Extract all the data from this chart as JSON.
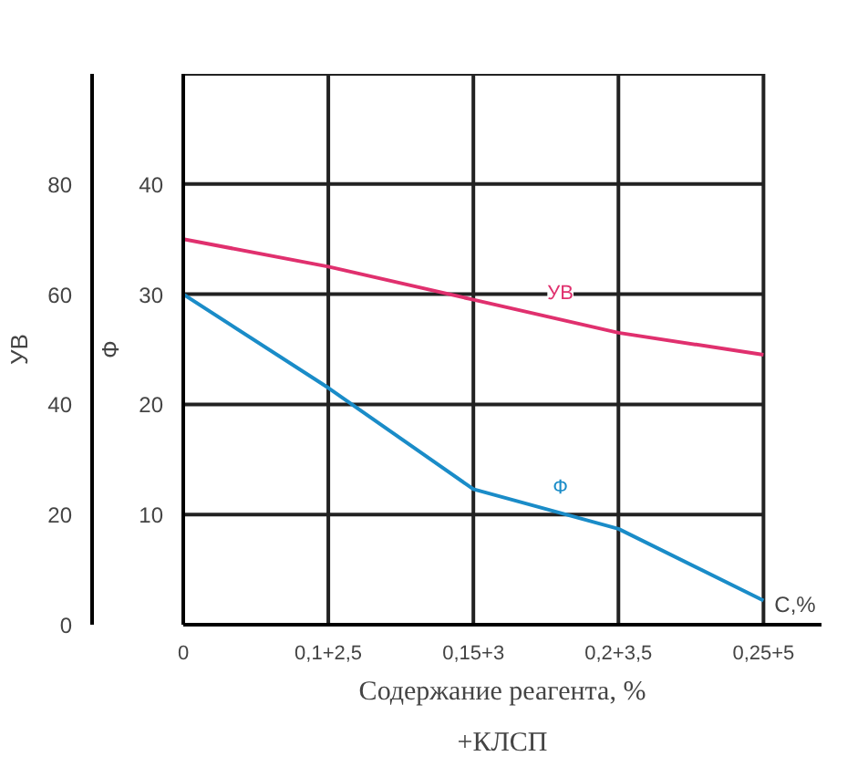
{
  "chart_data": {
    "type": "line",
    "xlabel": "C,%",
    "ylabel": "Ф",
    "y2label": "УВ",
    "categories": [
      "0",
      "0,1+2,5",
      "0,15+3",
      "0,2+3,5",
      "0,25+5"
    ],
    "ylim": [
      0,
      50
    ],
    "yticks": [
      10,
      20,
      30,
      40
    ],
    "y2lim": [
      0,
      100
    ],
    "y2ticks": [
      0,
      20,
      40,
      60,
      80
    ],
    "grid": true,
    "marker": "none",
    "line_style": "solid",
    "series": [
      {
        "name": "УВ",
        "color": "#e0306e",
        "axis": "y2",
        "values": [
          70,
          65,
          59,
          53,
          49
        ]
      },
      {
        "name": "Ф",
        "color": "#1a8cc8",
        "values": [
          30,
          21.5,
          12.3,
          8.7,
          2.2
        ]
      }
    ],
    "annotations": [
      "Содержание реагента, %",
      "+КЛСП"
    ]
  }
}
